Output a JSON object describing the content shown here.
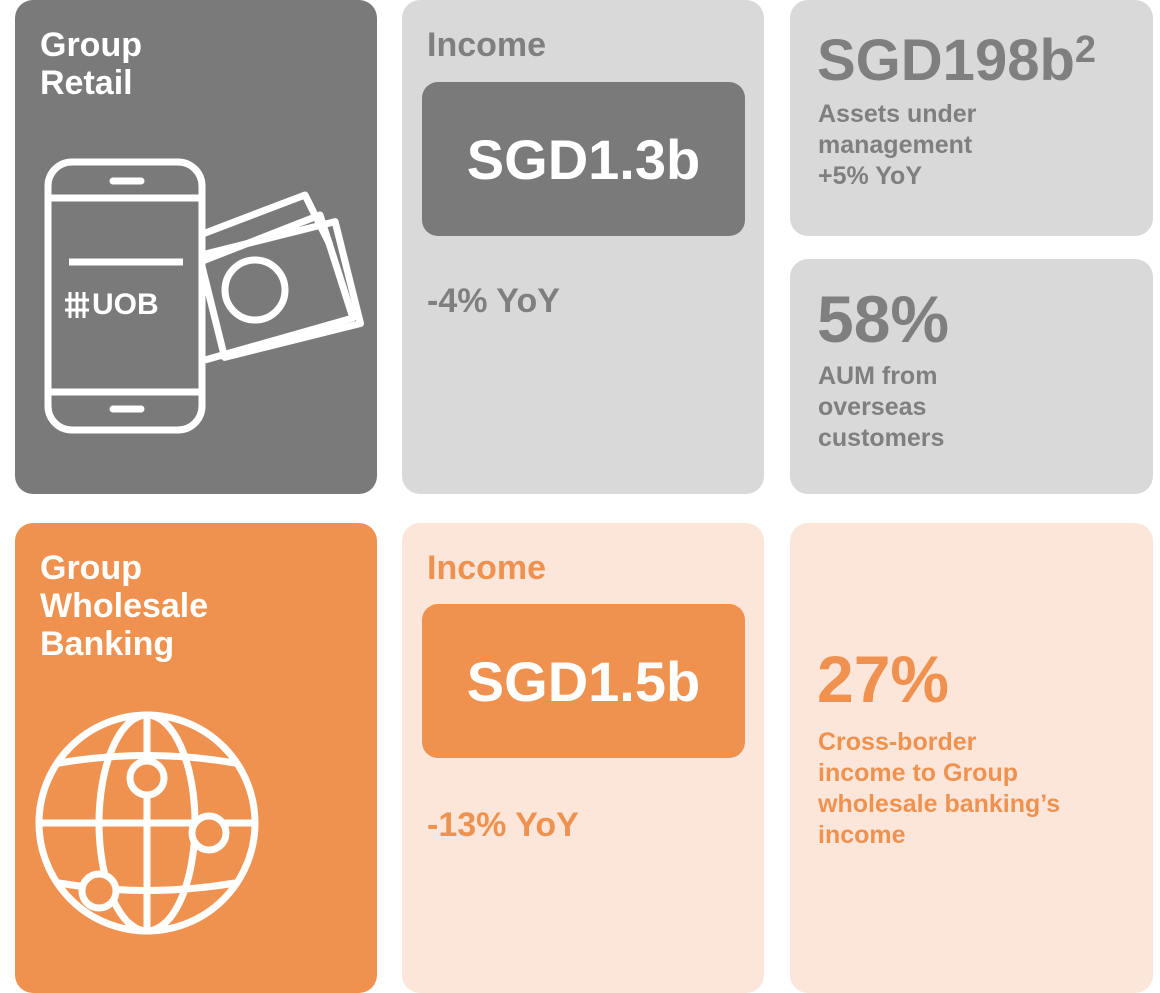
{
  "retail": {
    "title": [
      "Group",
      "Retail"
    ],
    "icon_text": "UOB",
    "income": {
      "label": "Income",
      "value": "SGD1.3b",
      "change": "-4% YoY"
    },
    "aum": {
      "value": "SGD198b",
      "superscript": "2",
      "caption": [
        "Assets under",
        "management",
        "+5% YoY"
      ]
    },
    "overseas": {
      "value": "58%",
      "caption": [
        "AUM from",
        "overseas",
        "customers"
      ]
    }
  },
  "wholesale": {
    "title": [
      "Group",
      "Wholesale",
      "Banking"
    ],
    "income": {
      "label": "Income",
      "value": "SGD1.5b",
      "change": "-13% YoY"
    },
    "cross_border": {
      "value": "27%",
      "caption": [
        "Cross-border",
        "income to Group",
        "wholesale banking’s",
        "income"
      ]
    }
  }
}
